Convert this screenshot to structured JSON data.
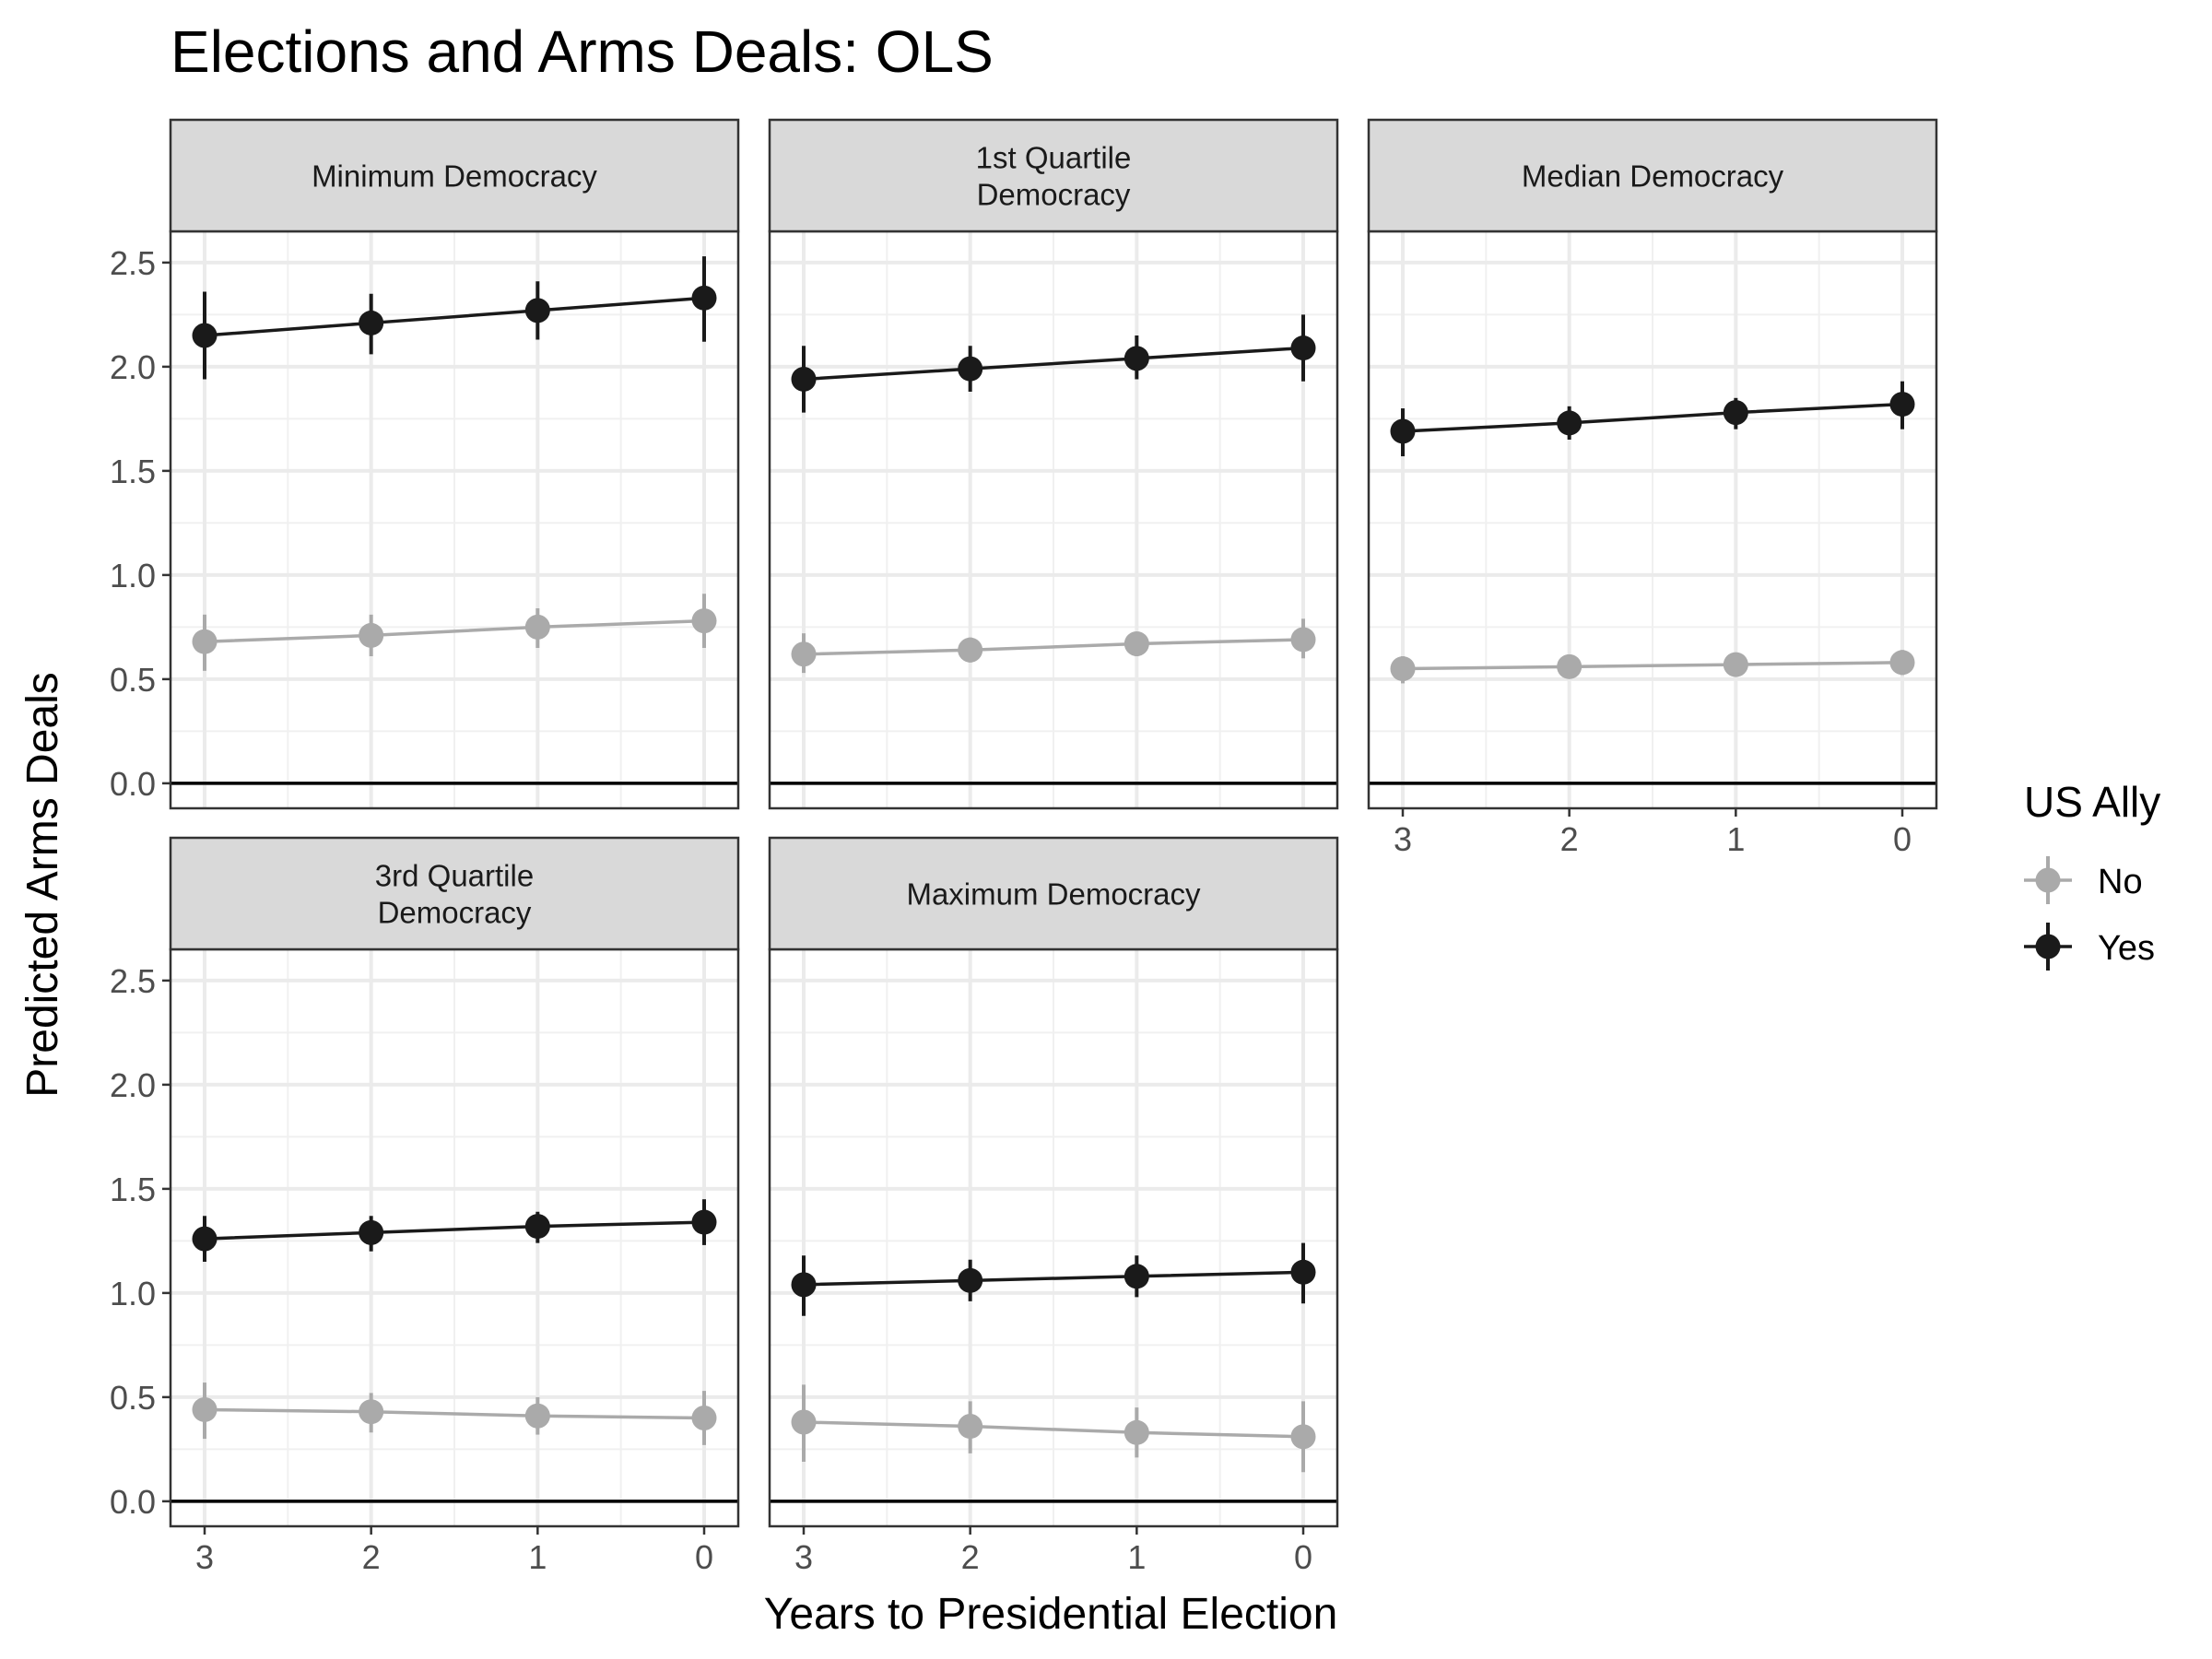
{
  "chart_data": {
    "type": "line",
    "title": "Elections and Arms Deals: OLS",
    "xlabel": "Years to Presidential Election",
    "ylabel": "Predicted Arms Deals",
    "x": [
      3,
      2,
      1,
      0
    ],
    "x_tick_labels": [
      "3",
      "2",
      "1",
      "0"
    ],
    "ylim": [
      -0.12,
      2.65
    ],
    "y_ticks": [
      0.0,
      0.5,
      1.0,
      1.5,
      2.0,
      2.5
    ],
    "y_tick_labels": [
      "0.0",
      "0.5",
      "1.0",
      "1.5",
      "2.0",
      "2.5"
    ],
    "grid": true,
    "hline": 0,
    "legend": {
      "title": "US Ally",
      "position": "right",
      "entries": [
        {
          "label": "No",
          "color": "#aaaaaa"
        },
        {
          "label": "Yes",
          "color": "#1a1a1a"
        }
      ]
    },
    "facets": [
      {
        "label_lines": [
          "Minimum Democracy"
        ],
        "series": [
          {
            "legend": "No",
            "values": [
              0.68,
              0.71,
              0.75,
              0.78
            ],
            "lower": [
              0.54,
              0.61,
              0.65,
              0.65
            ],
            "upper": [
              0.81,
              0.81,
              0.84,
              0.91
            ]
          },
          {
            "legend": "Yes",
            "values": [
              2.15,
              2.21,
              2.27,
              2.33
            ],
            "lower": [
              1.94,
              2.06,
              2.13,
              2.12
            ],
            "upper": [
              2.36,
              2.35,
              2.41,
              2.53
            ]
          }
        ]
      },
      {
        "label_lines": [
          "1st Quartile",
          "Democracy"
        ],
        "series": [
          {
            "legend": "No",
            "values": [
              0.62,
              0.64,
              0.67,
              0.69
            ],
            "lower": [
              0.53,
              0.58,
              0.61,
              0.6
            ],
            "upper": [
              0.72,
              0.7,
              0.72,
              0.79
            ]
          },
          {
            "legend": "Yes",
            "values": [
              1.94,
              1.99,
              2.04,
              2.09
            ],
            "lower": [
              1.78,
              1.88,
              1.94,
              1.93
            ],
            "upper": [
              2.1,
              2.1,
              2.15,
              2.25
            ]
          }
        ]
      },
      {
        "label_lines": [
          "Median Democracy"
        ],
        "series": [
          {
            "legend": "No",
            "values": [
              0.55,
              0.56,
              0.57,
              0.58
            ],
            "lower": [
              0.48,
              0.52,
              0.53,
              0.52
            ],
            "upper": [
              0.61,
              0.61,
              0.62,
              0.64
            ]
          },
          {
            "legend": "Yes",
            "values": [
              1.69,
              1.73,
              1.78,
              1.82
            ],
            "lower": [
              1.57,
              1.65,
              1.7,
              1.7
            ],
            "upper": [
              1.8,
              1.81,
              1.85,
              1.93
            ]
          }
        ]
      },
      {
        "label_lines": [
          "3rd Quartile",
          "Democracy"
        ],
        "series": [
          {
            "legend": "No",
            "values": [
              0.44,
              0.43,
              0.41,
              0.4
            ],
            "lower": [
              0.3,
              0.33,
              0.32,
              0.27
            ],
            "upper": [
              0.57,
              0.52,
              0.5,
              0.53
            ]
          },
          {
            "legend": "Yes",
            "values": [
              1.26,
              1.29,
              1.32,
              1.34
            ],
            "lower": [
              1.15,
              1.2,
              1.24,
              1.23
            ],
            "upper": [
              1.37,
              1.37,
              1.39,
              1.45
            ]
          }
        ]
      },
      {
        "label_lines": [
          "Maximum Democracy"
        ],
        "series": [
          {
            "legend": "No",
            "values": [
              0.38,
              0.36,
              0.33,
              0.31
            ],
            "lower": [
              0.19,
              0.23,
              0.21,
              0.14
            ],
            "upper": [
              0.56,
              0.48,
              0.45,
              0.48
            ]
          },
          {
            "legend": "Yes",
            "values": [
              1.04,
              1.06,
              1.08,
              1.1
            ],
            "lower": [
              0.89,
              0.96,
              0.98,
              0.95
            ],
            "upper": [
              1.18,
              1.16,
              1.18,
              1.24
            ]
          }
        ]
      }
    ]
  }
}
